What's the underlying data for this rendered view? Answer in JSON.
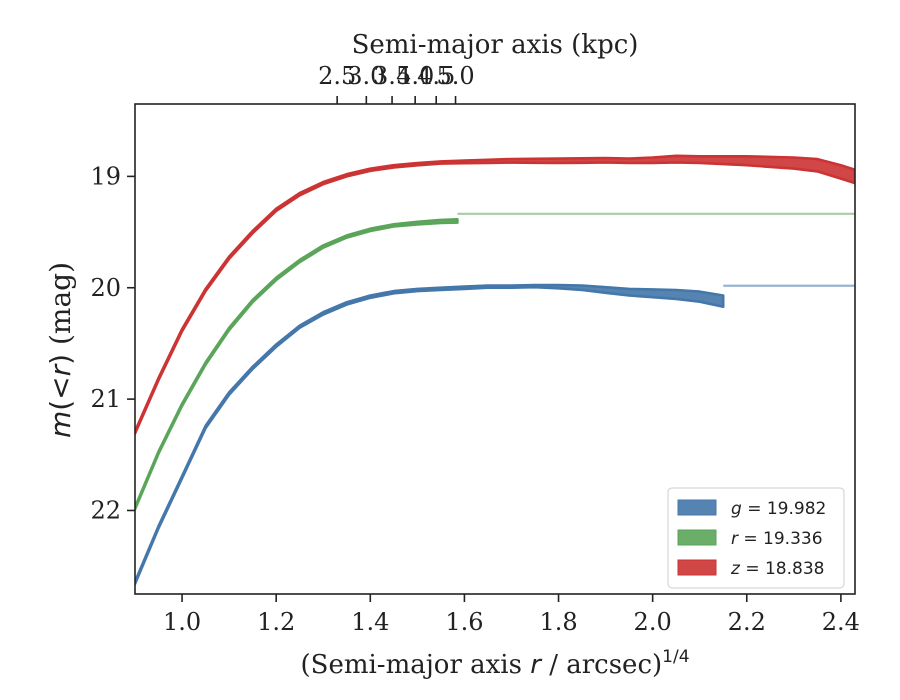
{
  "chart_data": {
    "type": "line",
    "title": "",
    "xlabel_pre": "(Semi-major axis ",
    "xlabel_var": "r",
    "xlabel_post": " / arcsec)",
    "xlabel_sup": "1/4",
    "ylabel_var_m": "m",
    "ylabel_open": "(",
    "ylabel_lt": "<",
    "ylabel_var_r": "r",
    "ylabel_close": ")",
    "ylabel_unit": " (mag)",
    "top_xlabel": "Semi-major axis (kpc)",
    "xlim": [
      0.9,
      2.43
    ],
    "ylim": [
      22.75,
      18.35
    ],
    "y_inverted": true,
    "x_ticks": [
      "1.0",
      "1.2",
      "1.4",
      "1.6",
      "1.8",
      "2.0",
      "2.2",
      "2.4"
    ],
    "y_ticks": [
      "19",
      "20",
      "21",
      "22"
    ],
    "top_ticks": [
      "2.5",
      "3.0",
      "3.5",
      "4.0",
      "4.5",
      "5.0"
    ],
    "top_kpc_per_arcsec": 0.8,
    "grid": false,
    "legend_position": "lower-right",
    "series": [
      {
        "key": "g",
        "name": "g = 19.982",
        "legend_var": "g",
        "legend_val": " = 19.982",
        "color": "#4477aa",
        "asymptote": 19.982,
        "x": [
          0.9,
          0.95,
          1.0,
          1.05,
          1.1,
          1.15,
          1.2,
          1.25,
          1.3,
          1.35,
          1.4,
          1.45,
          1.5,
          1.55,
          1.6,
          1.65,
          1.7,
          1.75,
          1.8,
          1.85,
          1.9,
          1.95,
          2.0,
          2.05,
          2.1,
          2.15
        ],
        "y": [
          22.65,
          22.15,
          21.7,
          21.25,
          20.95,
          20.72,
          20.52,
          20.35,
          20.23,
          20.14,
          20.08,
          20.04,
          20.02,
          20.01,
          20.0,
          19.99,
          19.99,
          19.985,
          19.99,
          20.0,
          20.02,
          20.04,
          20.05,
          20.06,
          20.08,
          20.12
        ],
        "band": [
          0.01,
          0.01,
          0.01,
          0.01,
          0.01,
          0.01,
          0.01,
          0.01,
          0.01,
          0.01,
          0.01,
          0.01,
          0.01,
          0.01,
          0.01,
          0.01,
          0.01,
          0.01,
          0.015,
          0.02,
          0.025,
          0.03,
          0.035,
          0.04,
          0.045,
          0.05
        ]
      },
      {
        "key": "r",
        "name": "r = 19.336",
        "legend_var": "r",
        "legend_val": " = 19.336",
        "color": "#5aa55a",
        "asymptote": 19.336,
        "x": [
          0.9,
          0.95,
          1.0,
          1.05,
          1.1,
          1.15,
          1.2,
          1.25,
          1.3,
          1.35,
          1.4,
          1.45,
          1.5,
          1.55,
          1.585
        ],
        "y": [
          21.98,
          21.48,
          21.05,
          20.68,
          20.37,
          20.12,
          19.92,
          19.76,
          19.63,
          19.54,
          19.48,
          19.44,
          19.42,
          19.405,
          19.4
        ],
        "band": [
          0.01,
          0.01,
          0.01,
          0.01,
          0.01,
          0.01,
          0.01,
          0.01,
          0.01,
          0.01,
          0.01,
          0.01,
          0.012,
          0.014,
          0.015
        ]
      },
      {
        "key": "z",
        "name": "z = 18.838",
        "legend_var": "z",
        "legend_val": " = 18.838",
        "color": "#cc3333",
        "asymptote": 18.838,
        "x": [
          0.9,
          0.95,
          1.0,
          1.05,
          1.1,
          1.15,
          1.2,
          1.25,
          1.3,
          1.35,
          1.4,
          1.45,
          1.5,
          1.55,
          1.6,
          1.65,
          1.7,
          1.75,
          1.8,
          1.85,
          1.9,
          1.95,
          2.0,
          2.05,
          2.1,
          2.15,
          2.2,
          2.25,
          2.3,
          2.35,
          2.4,
          2.43
        ],
        "y": [
          21.3,
          20.82,
          20.38,
          20.02,
          19.73,
          19.5,
          19.3,
          19.16,
          19.06,
          18.99,
          18.94,
          18.91,
          18.89,
          18.875,
          18.87,
          18.865,
          18.86,
          18.86,
          18.86,
          18.858,
          18.855,
          18.86,
          18.855,
          18.845,
          18.85,
          18.855,
          18.86,
          18.87,
          18.88,
          18.9,
          18.96,
          19.0
        ],
        "band": [
          0.01,
          0.01,
          0.01,
          0.01,
          0.01,
          0.01,
          0.01,
          0.01,
          0.01,
          0.01,
          0.01,
          0.01,
          0.01,
          0.01,
          0.012,
          0.014,
          0.016,
          0.018,
          0.02,
          0.02,
          0.02,
          0.02,
          0.025,
          0.03,
          0.03,
          0.035,
          0.04,
          0.045,
          0.05,
          0.055,
          0.06,
          0.06
        ]
      }
    ]
  }
}
